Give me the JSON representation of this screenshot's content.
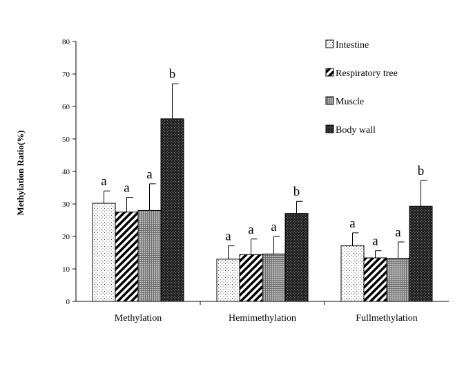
{
  "chart_data": {
    "type": "bar",
    "title": "",
    "xlabel": "",
    "ylabel": "Methylation Ratio(%)",
    "ylim": [
      0,
      80
    ],
    "yticks": [
      0,
      10,
      20,
      30,
      40,
      50,
      60,
      70,
      80
    ],
    "grid": false,
    "legend_position": "top-right",
    "categories": [
      "Methylation",
      "Hemimethylation",
      "Fullmethylation"
    ],
    "series": [
      {
        "name": "Intestine",
        "pattern": "dots",
        "values": [
          30.2,
          13.0,
          17.1
        ],
        "errors": [
          3.8,
          4.1,
          4.0
        ],
        "labels": [
          "a",
          "a",
          "a"
        ]
      },
      {
        "name": "Respiratory tree",
        "pattern": "diagonal-stripes",
        "values": [
          27.5,
          14.4,
          13.4
        ],
        "errors": [
          4.5,
          4.8,
          2.2
        ],
        "labels": [
          "a",
          "a",
          "a"
        ]
      },
      {
        "name": "Muscle",
        "pattern": "crosshatch-grey",
        "values": [
          28.0,
          14.6,
          13.3
        ],
        "errors": [
          8.2,
          5.4,
          5.0
        ],
        "labels": [
          "a",
          "a",
          "a"
        ]
      },
      {
        "name": "Body wall",
        "pattern": "dark-checker",
        "values": [
          56.2,
          27.1,
          29.3
        ],
        "errors": [
          10.8,
          3.7,
          7.9
        ],
        "labels": [
          "b",
          "b",
          "b"
        ]
      }
    ]
  }
}
